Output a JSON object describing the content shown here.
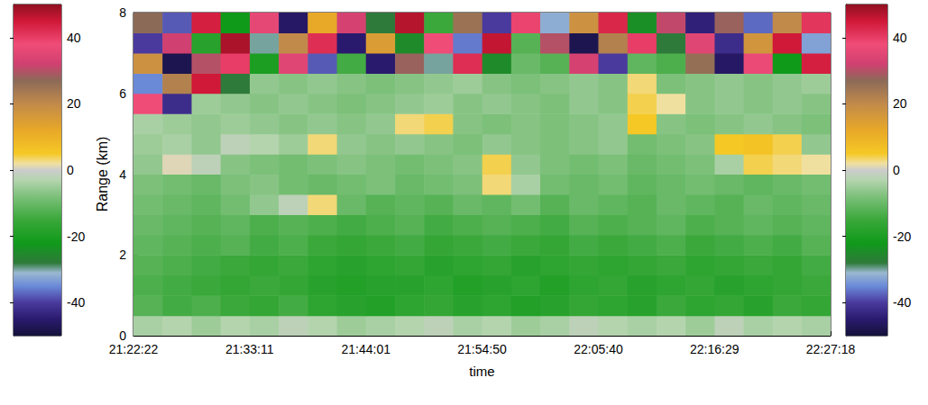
{
  "chart_data": {
    "type": "heatmap",
    "xlabel": "time",
    "ylabel": "Range (km)",
    "xlim": [
      76942,
      80838
    ],
    "xticks": [
      {
        "value": 76942,
        "label": "21:22:22"
      },
      {
        "value": 77591,
        "label": "21:33:11"
      },
      {
        "value": 78241,
        "label": "21:44:01"
      },
      {
        "value": 78890,
        "label": "21:54:50"
      },
      {
        "value": 79540,
        "label": "22:05:40"
      },
      {
        "value": 80189,
        "label": "22:16:29"
      },
      {
        "value": 80838,
        "label": "22:27:18"
      }
    ],
    "ylim": [
      0,
      8
    ],
    "yticks": [
      0,
      2,
      4,
      6,
      8
    ],
    "cells": {
      "x_edges": [
        76942,
        77104,
        77267,
        77429,
        77592,
        77754,
        77916,
        78079,
        78241,
        78404,
        78566,
        78728,
        78891,
        79053,
        79215,
        79378,
        79540,
        79703,
        79865,
        80027,
        80190,
        80352,
        80514,
        80676,
        80838
      ],
      "y_edges": [
        0,
        0.5,
        1,
        1.5,
        2,
        2.5,
        3,
        3.5,
        4,
        4.5,
        5,
        5.5,
        6,
        6.5,
        7,
        7.5,
        8
      ],
      "values": [
        [
          -4,
          -3,
          -5,
          -3,
          -4,
          -2,
          -3,
          -5,
          -4,
          -3,
          -2,
          -4,
          -3,
          -5,
          -4,
          -2,
          -3,
          -4,
          -3,
          -5,
          -2,
          -4,
          -3,
          -4
        ],
        [
          -12,
          -14,
          -13,
          -15,
          -16,
          -14,
          -17,
          -18,
          -19,
          -17,
          -16,
          -18,
          -17,
          -19,
          -18,
          -16,
          -17,
          -18,
          -15,
          -17,
          -16,
          -18,
          -15,
          -16
        ],
        [
          -13,
          -14,
          -15,
          -16,
          -15,
          -16,
          -18,
          -19,
          -18,
          -18,
          -17,
          -19,
          -18,
          -17,
          -19,
          -17,
          -16,
          -18,
          -17,
          -16,
          -18,
          -17,
          -16,
          -15
        ],
        [
          -12,
          -13,
          -14,
          -15,
          -16,
          -15,
          -17,
          -18,
          -17,
          -16,
          -18,
          -17,
          -16,
          -18,
          -17,
          -16,
          -17,
          -16,
          -15,
          -17,
          -16,
          -15,
          -16,
          -14
        ],
        [
          -11,
          -12,
          -13,
          -12,
          -14,
          -13,
          -15,
          -16,
          -15,
          -14,
          -16,
          -15,
          -14,
          -15,
          -16,
          -14,
          -15,
          -14,
          -13,
          -15,
          -14,
          -13,
          -14,
          -12
        ],
        [
          -10,
          -11,
          -12,
          -11,
          -13,
          -12,
          -13,
          -14,
          -13,
          -12,
          -14,
          -13,
          -12,
          -13,
          -14,
          -12,
          -13,
          -12,
          -11,
          -13,
          -12,
          -11,
          -12,
          -11
        ],
        [
          -9,
          -10,
          -11,
          -9,
          -6,
          -2,
          3,
          -10,
          -12,
          -11,
          -12,
          -10,
          -11,
          -9,
          -12,
          -10,
          -11,
          -12,
          -10,
          -11,
          -12,
          -10,
          -11,
          -10
        ],
        [
          -8,
          -9,
          -10,
          -8,
          -7,
          -9,
          -10,
          -9,
          -8,
          -10,
          -9,
          -8,
          3,
          -4,
          -9,
          -10,
          -9,
          -11,
          -10,
          -9,
          -10,
          -11,
          -10,
          -9
        ],
        [
          -6,
          1,
          -2,
          -7,
          -8,
          -9,
          -8,
          -7,
          -8,
          -9,
          -8,
          -7,
          4,
          -6,
          -8,
          -9,
          -8,
          -10,
          -9,
          -8,
          -4,
          4,
          3,
          2
        ],
        [
          -5,
          -4,
          -6,
          -2,
          -3,
          -5,
          3,
          -6,
          -7,
          -6,
          -7,
          -8,
          -6,
          -7,
          -8,
          -7,
          -6,
          -9,
          -8,
          -7,
          5,
          6,
          4,
          -6
        ],
        [
          -4,
          -5,
          -6,
          -5,
          -6,
          -7,
          -6,
          -7,
          -6,
          3,
          4,
          -7,
          -8,
          -7,
          -8,
          -7,
          -6,
          5,
          -7,
          -8,
          -7,
          -6,
          -7,
          -8
        ],
        [
          38,
          -42,
          -5,
          -6,
          -7,
          -6,
          -7,
          -8,
          -7,
          -6,
          -5,
          -7,
          -6,
          -7,
          -8,
          -6,
          -7,
          4,
          2,
          -7,
          -6,
          -7,
          -6,
          -7
        ],
        [
          -35,
          22,
          45,
          -28,
          -6,
          -7,
          -6,
          -7,
          -8,
          -7,
          -6,
          -5,
          -7,
          -8,
          -7,
          -6,
          -7,
          3,
          -8,
          -7,
          -6,
          -7,
          -6,
          -5
        ],
        [
          18,
          -48,
          30,
          40,
          -20,
          35,
          -38,
          -14,
          -45,
          28,
          -30,
          42,
          -25,
          -10,
          -12,
          33,
          -40,
          -11,
          -13,
          26,
          -46,
          37,
          -22,
          44
        ],
        [
          -40,
          32,
          -18,
          48,
          -30,
          20,
          42,
          -45,
          15,
          -25,
          38,
          -36,
          46,
          -12,
          30,
          -48,
          22,
          40,
          -28,
          35,
          -42,
          17,
          45,
          -33
        ],
        [
          27,
          -38,
          44,
          -22,
          36,
          -46,
          12,
          33,
          -28,
          47,
          -15,
          25,
          -40,
          39,
          -32,
          18,
          43,
          -24,
          31,
          -44,
          28,
          -37,
          20,
          41
        ]
      ]
    },
    "colorbars": [
      {
        "range": [
          -50,
          50
        ],
        "ticks": [
          -40,
          -20,
          0,
          20,
          40
        ]
      },
      {
        "range": [
          -50,
          50
        ],
        "ticks": [
          -40,
          -20,
          0,
          20,
          40
        ]
      }
    ]
  }
}
